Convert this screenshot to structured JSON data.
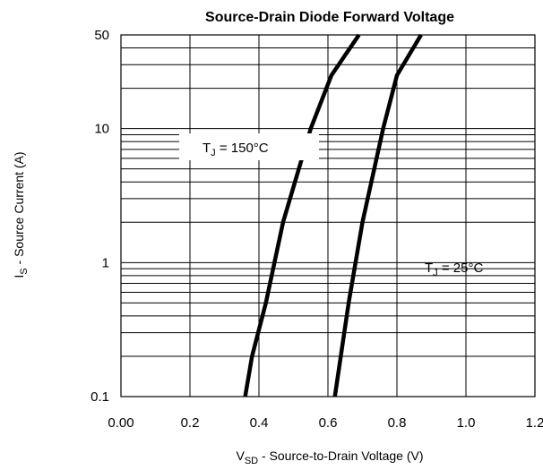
{
  "chart_data": {
    "type": "line",
    "title": "Source-Drain Diode Forward Voltage",
    "xlabel": {
      "main": "V",
      "sub": "SD",
      "rest": "  -  Source-to-Drain Voltage (V)"
    },
    "ylabel": {
      "main": "I",
      "sub": "S",
      "rest": "  -  Source Current (A)"
    },
    "xlim": [
      0.0,
      1.2
    ],
    "ylim": [
      0.1,
      50
    ],
    "yscale": "log",
    "grid": true,
    "x_ticks": [
      "0.00",
      "0.2",
      "0.4",
      "0.6",
      "0.8",
      "1.0",
      "1.2"
    ],
    "y_ticks": [
      "0.1",
      "1",
      "10",
      "50"
    ],
    "series": [
      {
        "name": "TJ = 150°C",
        "label": {
          "main": "T",
          "sub": "J",
          "rest": " = 150°C"
        },
        "x": [
          0.36,
          0.38,
          0.42,
          0.47,
          0.55,
          0.61,
          0.69
        ],
        "y": [
          0.1,
          0.2,
          0.5,
          2,
          10,
          25,
          50
        ]
      },
      {
        "name": "TJ = 25°C",
        "label": {
          "main": "T",
          "sub": "J",
          "rest": " = 25°C"
        },
        "x": [
          0.62,
          0.66,
          0.7,
          0.76,
          0.8,
          0.87
        ],
        "y": [
          0.1,
          0.5,
          2,
          10,
          25,
          50
        ]
      }
    ]
  }
}
